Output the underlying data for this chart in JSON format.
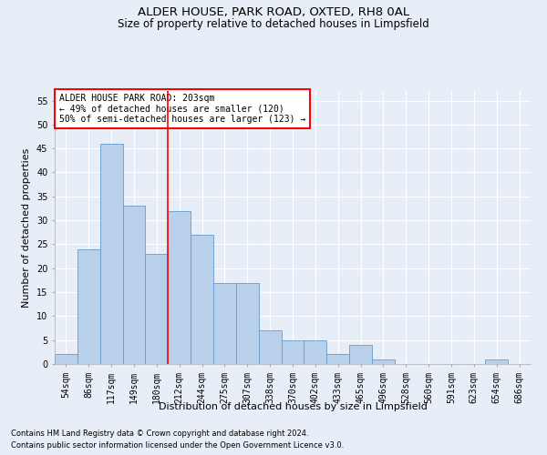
{
  "title1": "ALDER HOUSE, PARK ROAD, OXTED, RH8 0AL",
  "title2": "Size of property relative to detached houses in Limpsfield",
  "xlabel": "Distribution of detached houses by size in Limpsfield",
  "ylabel": "Number of detached properties",
  "categories": [
    "54sqm",
    "86sqm",
    "117sqm",
    "149sqm",
    "180sqm",
    "212sqm",
    "244sqm",
    "275sqm",
    "307sqm",
    "338sqm",
    "370sqm",
    "402sqm",
    "433sqm",
    "465sqm",
    "496sqm",
    "528sqm",
    "560sqm",
    "591sqm",
    "623sqm",
    "654sqm",
    "686sqm"
  ],
  "values": [
    2,
    24,
    46,
    33,
    23,
    32,
    27,
    17,
    17,
    7,
    5,
    5,
    2,
    4,
    1,
    0,
    0,
    0,
    0,
    1,
    0
  ],
  "bar_color": "#b8d0ea",
  "bar_edge_color": "#6699cc",
  "ylim": [
    0,
    57
  ],
  "yticks": [
    0,
    5,
    10,
    15,
    20,
    25,
    30,
    35,
    40,
    45,
    50,
    55
  ],
  "vline_x_index": 5,
  "vline_color": "red",
  "annotation_text": "ALDER HOUSE PARK ROAD: 203sqm\n← 49% of detached houses are smaller (120)\n50% of semi-detached houses are larger (123) →",
  "annotation_box_color": "white",
  "annotation_box_edge_color": "red",
  "footer1": "Contains HM Land Registry data © Crown copyright and database right 2024.",
  "footer2": "Contains public sector information licensed under the Open Government Licence v3.0.",
  "background_color": "#e8eef8",
  "grid_color": "#ffffff",
  "title_fontsize": 9.5,
  "subtitle_fontsize": 8.5,
  "xlabel_fontsize": 8,
  "ylabel_fontsize": 8,
  "tick_fontsize": 7,
  "annotation_fontsize": 7
}
